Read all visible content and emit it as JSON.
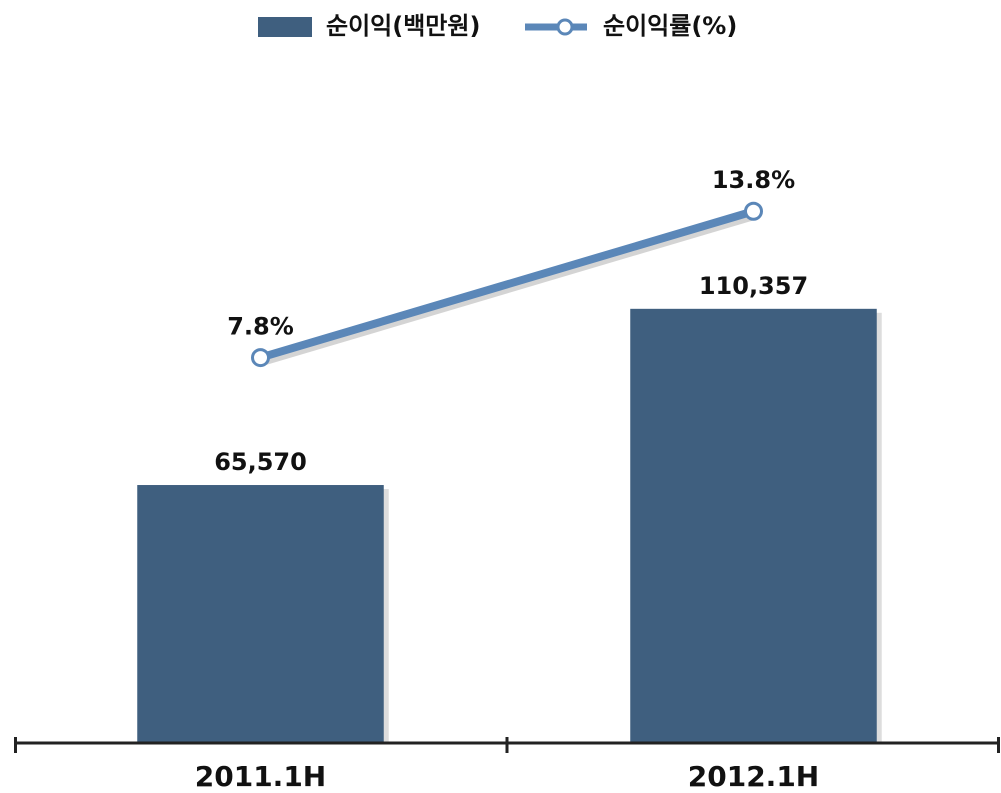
{
  "chart_data": {
    "type": "bar",
    "categories": [
      "2011.1H",
      "2012.1H"
    ],
    "series": [
      {
        "name": "순이익(백만원)",
        "color": "#3f5f7f",
        "values": [
          65570,
          110357
        ],
        "value_labels": [
          "65,570",
          "110,357"
        ]
      },
      {
        "name": "순이익률(%)",
        "type": "line",
        "axis": "y2",
        "color": "#5b87b8",
        "values": [
          7.8,
          13.8
        ],
        "value_labels": [
          "7.8%",
          "13.8%"
        ]
      }
    ],
    "ylim": [
      0,
      173600
    ],
    "y2lim": [
      -8,
      20
    ],
    "legend": "top"
  }
}
